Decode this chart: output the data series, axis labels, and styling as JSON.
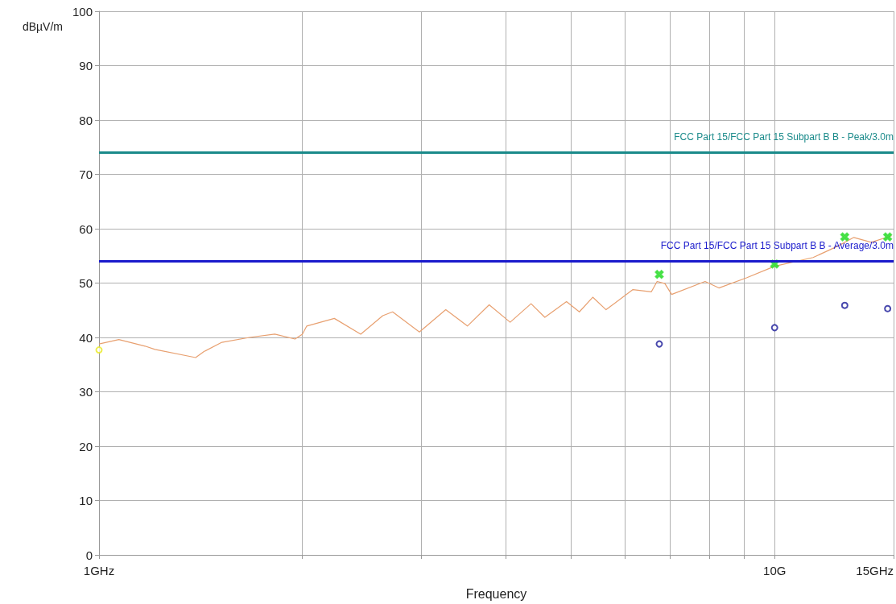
{
  "chart_data": {
    "type": "line",
    "xlabel": "Frequency",
    "ylabel": "dBµV/m",
    "log": "x",
    "xlim": [
      1,
      15
    ],
    "xticks": [
      {
        "value": 1,
        "label": "1GHz"
      },
      {
        "value": 2,
        "label": null
      },
      {
        "value": 3,
        "label": null
      },
      {
        "value": 4,
        "label": null
      },
      {
        "value": 5,
        "label": null
      },
      {
        "value": 6,
        "label": null
      },
      {
        "value": 7,
        "label": null
      },
      {
        "value": 8,
        "label": null
      },
      {
        "value": 9,
        "label": null
      },
      {
        "value": 10,
        "label": "10G"
      },
      {
        "value": 15,
        "label": "15GHz"
      }
    ],
    "ylim": [
      0,
      100
    ],
    "yticks": [
      0,
      10,
      20,
      30,
      40,
      50,
      60,
      70,
      80,
      90,
      100
    ],
    "grid": true,
    "series": [
      {
        "color": "#e8a070",
        "marker": "none",
        "x": [
          1,
          1.07,
          1.17,
          1.21,
          1.39,
          1.43,
          1.52,
          1.67,
          1.82,
          1.95,
          2.0,
          2.03,
          2.23,
          2.44,
          2.63,
          2.72,
          2.98,
          3.26,
          3.51,
          3.78,
          4.06,
          4.36,
          4.57,
          4.92,
          5.14,
          5.38,
          5.63,
          6.17,
          6.57,
          6.7,
          6.88,
          7.04,
          7.89,
          8.27,
          9.1,
          10.0,
          11.4,
          12.4,
          13.1,
          13.9,
          14.9
        ],
        "values": [
          38.8,
          39.6,
          38.4,
          37.8,
          36.3,
          37.4,
          39.1,
          40.0,
          40.6,
          39.7,
          40.6,
          42.1,
          43.5,
          40.6,
          44.0,
          44.7,
          41.0,
          45.1,
          42.1,
          46.0,
          42.8,
          46.2,
          43.7,
          46.6,
          44.7,
          47.4,
          45.1,
          48.8,
          48.4,
          50.3,
          49.9,
          47.9,
          50.3,
          49.1,
          51.0,
          53.1,
          54.7,
          56.8,
          58.4,
          57.5,
          58.7
        ]
      },
      {
        "type": "scatter",
        "color": "#33dd33",
        "marker": "cross",
        "x": [
          6.75,
          10.0,
          12.7,
          14.7
        ],
        "values": [
          51.6,
          53.5,
          58.5,
          58.5
        ]
      },
      {
        "type": "scatter",
        "color": "#1a1a99",
        "marker": "circle",
        "x": [
          6.75,
          10.0,
          12.7,
          14.7
        ],
        "values": [
          38.8,
          41.8,
          45.9,
          45.3
        ]
      },
      {
        "type": "scatter",
        "color": "#e8e820",
        "marker": "circle",
        "x": [
          1
        ],
        "values": [
          37.7
        ]
      }
    ],
    "ref_lines": [
      {
        "axis": "y",
        "value": 74,
        "label": "FCC Part 15/FCC Part 15 Subpart B B - Peak/3.0m",
        "color": "#1a8a8a"
      },
      {
        "axis": "y",
        "value": 54,
        "label": "FCC Part 15/FCC Part 15 Subpart B B - Average/3.0m",
        "color": "#1a1acc"
      }
    ]
  }
}
